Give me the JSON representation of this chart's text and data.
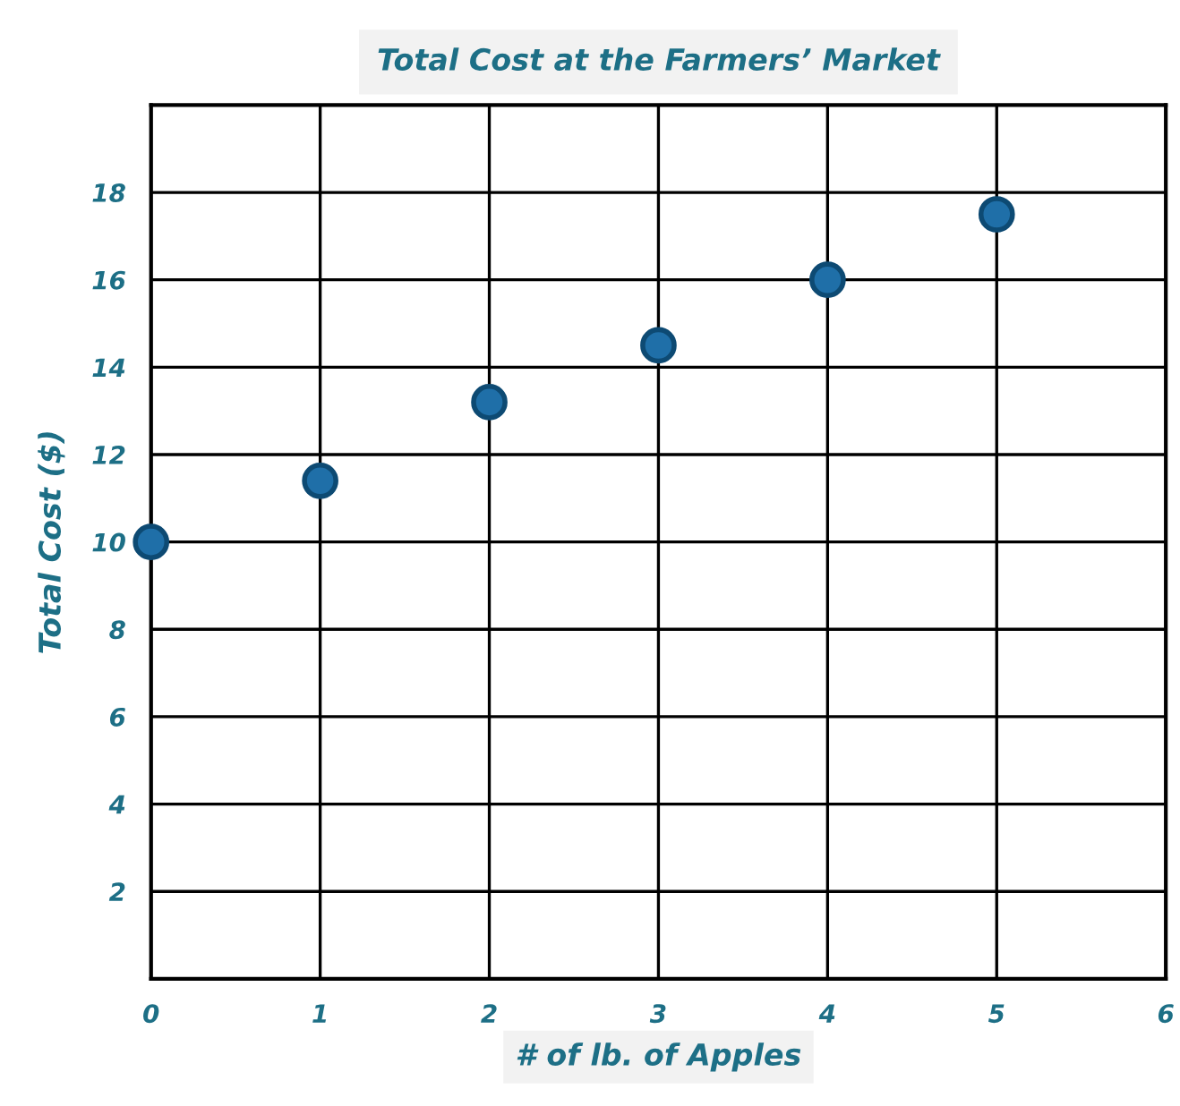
{
  "chart_data": {
    "type": "scatter",
    "title": "Total Cost at the Farmers’ Market",
    "xlabel": "# of lb. of Apples",
    "ylabel": "Total Cost ($)",
    "x": [
      0,
      1,
      2,
      3,
      4,
      5
    ],
    "series": [
      {
        "color": "#1f6fa8",
        "values": [
          10,
          11.4,
          13.2,
          14.5,
          16,
          17.5
        ]
      }
    ],
    "xlim": [
      0,
      6
    ],
    "xticks": [
      0,
      1,
      2,
      3,
      4,
      5,
      6
    ],
    "ylim": [
      0,
      20
    ],
    "yticks": [
      {
        "value": 0,
        "label": null
      },
      2,
      4,
      6,
      8,
      10,
      12,
      14,
      16,
      18,
      {
        "value": 20,
        "label": null
      }
    ],
    "grid": true,
    "marker": "circle"
  }
}
